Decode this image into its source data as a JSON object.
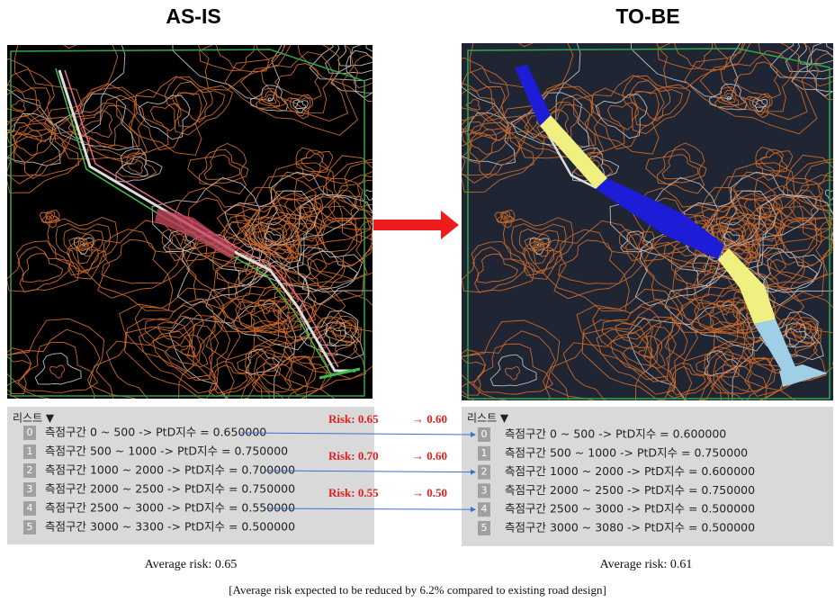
{
  "panels": [
    {
      "title": "AS-IS",
      "list": {
        "header": "리스트 ▼",
        "items": [
          {
            "index": "0",
            "text": "측점구간 0 ~ 500 -> PtD지수 = 0.650000"
          },
          {
            "index": "1",
            "text": "측점구간 500 ~ 1000 -> PtD지수 = 0.750000"
          },
          {
            "index": "2",
            "text": "측점구간 1000 ~ 2000 -> PtD지수 = 0.700000"
          },
          {
            "index": "3",
            "text": "측점구간 2000 ~ 2500 -> PtD지수 = 0.750000"
          },
          {
            "index": "4",
            "text": "측점구간 2500 ~ 3000 -> PtD지수 = 0.550000"
          },
          {
            "index": "5",
            "text": "측점구간 3000 ~ 3300 -> PtD지수 = 0.500000"
          }
        ]
      },
      "average": "Average risk: 0.65"
    },
    {
      "title": "TO-BE",
      "list": {
        "header": "리스트 ▼",
        "items": [
          {
            "index": "0",
            "text": "측점구간 0 ~ 500 -> PtD지수 = 0.600000"
          },
          {
            "index": "1",
            "text": "측점구간 500 ~ 1000 -> PtD지수 = 0.750000"
          },
          {
            "index": "2",
            "text": "측점구간 1000 ~ 2000 -> PtD지수 = 0.600000"
          },
          {
            "index": "3",
            "text": "측점구간 2000 ~ 2500 -> PtD지수 = 0.750000"
          },
          {
            "index": "4",
            "text": "측점구간 2500 ~ 3000 -> PtD지수 = 0.500000"
          },
          {
            "index": "5",
            "text": "측점구간 3000 ~ 3080 -> PtD지수 = 0.500000"
          }
        ]
      },
      "average": "Average risk: 0.61"
    }
  ],
  "annotations": [
    {
      "risk": "Risk: 0.65",
      "change": "→ 0.60"
    },
    {
      "risk": "Risk: 0.70",
      "change": "→ 0.60"
    },
    {
      "risk": "Risk: 0.55",
      "change": "→ 0.50"
    }
  ],
  "caption": "[Average risk expected to be reduced by 6.2% compared to existing  road design]"
}
